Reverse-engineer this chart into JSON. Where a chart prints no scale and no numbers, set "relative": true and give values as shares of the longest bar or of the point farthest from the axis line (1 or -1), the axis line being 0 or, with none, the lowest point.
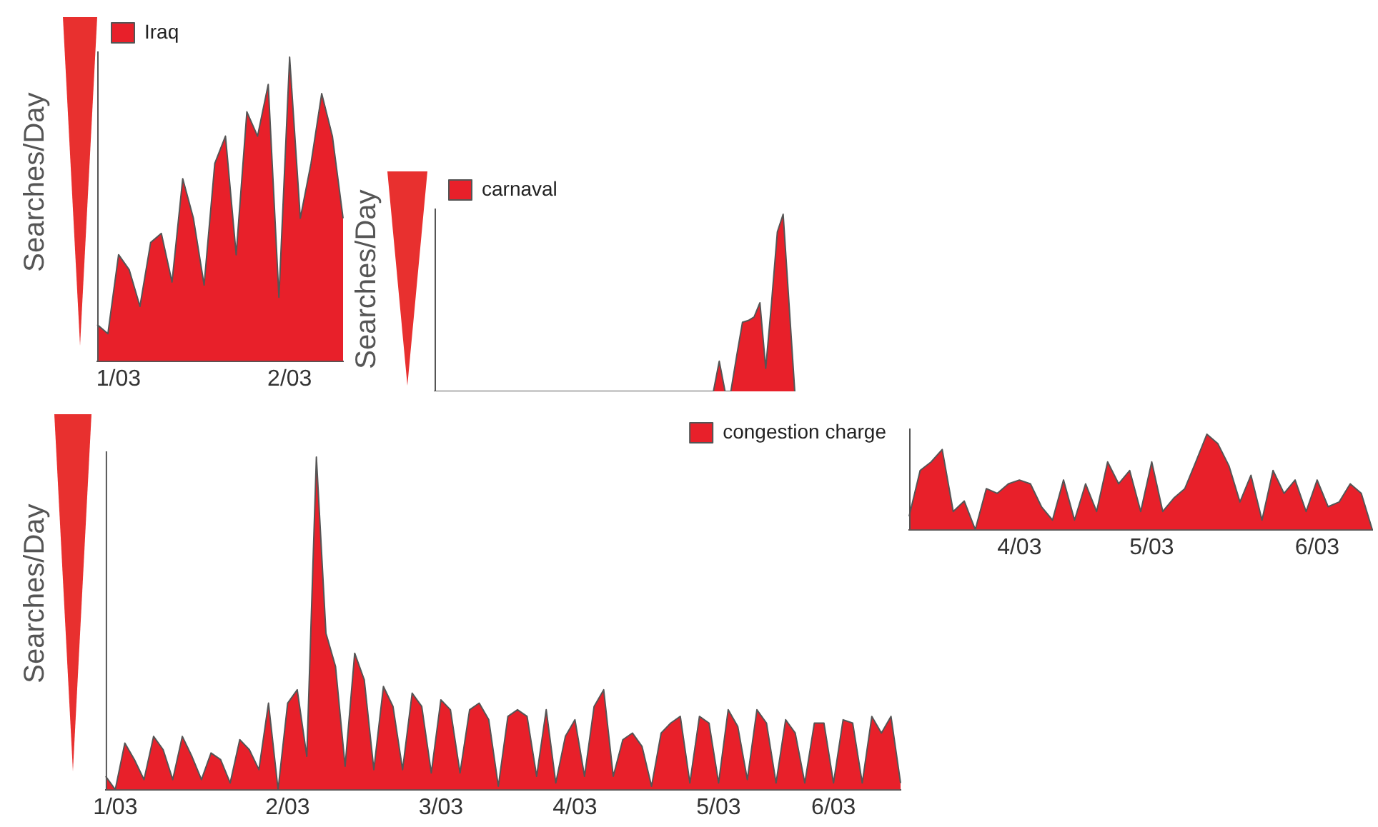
{
  "chart_data": [
    {
      "type": "area",
      "ylabel": "Searches/Day",
      "legend": "top left",
      "relative": true,
      "categories": [
        null,
        null,
        "1/03",
        null,
        null,
        null,
        null,
        null,
        null,
        null,
        null,
        null,
        null,
        null,
        null,
        null,
        null,
        null,
        "2/03",
        null,
        null,
        null,
        null,
        null
      ],
      "series": [
        {
          "name": "Iraq",
          "color": "#e8202a",
          "values": [
            0.12,
            0.09,
            0.35,
            0.3,
            0.18,
            0.39,
            0.42,
            0.26,
            0.6,
            0.47,
            0.25,
            0.65,
            0.74,
            0.35,
            0.82,
            0.74,
            0.91,
            0.21,
            1,
            0.47,
            0.65,
            0.88,
            0.74,
            0.47
          ]
        }
      ]
    },
    {
      "type": "area",
      "ylabel": "Searches/Day",
      "legend": "top left",
      "relative": true,
      "categories": [
        null,
        null,
        null,
        null,
        null,
        null,
        null,
        null,
        null,
        null,
        null,
        null,
        null,
        null,
        null,
        null,
        null,
        null,
        null,
        null,
        null,
        null,
        null,
        null,
        null,
        null,
        null,
        null,
        null,
        null,
        null,
        null,
        null,
        null,
        null,
        null,
        null,
        null,
        null,
        null,
        null,
        null,
        null,
        null,
        null,
        null,
        null,
        null,
        null,
        null,
        null,
        null,
        null,
        null,
        null,
        null,
        null,
        null,
        null,
        null,
        null,
        null,
        null
      ],
      "series": [
        {
          "name": "carnaval",
          "color": "#e8202a",
          "values": [
            0,
            0,
            0,
            0,
            0,
            0,
            0,
            0,
            0,
            0,
            0,
            0,
            0,
            0,
            0,
            0,
            0,
            0,
            0,
            0,
            0,
            0,
            0,
            0,
            0,
            0,
            0,
            0,
            0,
            0,
            0,
            0,
            0,
            0,
            0,
            0,
            0,
            0,
            0,
            0,
            0,
            0,
            0,
            0,
            0,
            0,
            0,
            0,
            0,
            0.17,
            0,
            0,
            0.2,
            0.39,
            0.4,
            0.42,
            0.5,
            0.13,
            0.5,
            0.9,
            1,
            0.5,
            0
          ]
        }
      ]
    },
    {
      "type": "area",
      "ylabel": "Searches/Day",
      "legend": "top right",
      "relative": true,
      "categories": [
        null,
        "1/03",
        null,
        null,
        null,
        null,
        null,
        null,
        null,
        null,
        null,
        null,
        null,
        null,
        null,
        null,
        null,
        null,
        null,
        "2/03",
        null,
        null,
        null,
        null,
        null,
        null,
        null,
        null,
        null,
        null,
        null,
        null,
        null,
        null,
        null,
        "3/03",
        null,
        null,
        null,
        null,
        null,
        null,
        null,
        null,
        null,
        null,
        null,
        null,
        null,
        "4/03",
        null,
        null,
        null,
        null,
        null,
        null,
        null,
        null,
        null,
        null,
        null,
        null,
        null,
        null,
        "5/03",
        null,
        null,
        null,
        null,
        null,
        null,
        null,
        null,
        null,
        null,
        null,
        "6/03",
        null,
        null,
        null,
        null,
        null,
        null,
        null
      ],
      "series": [
        {
          "name": "congestion charge",
          "color": "#e8202a",
          "values": [
            0.04,
            0,
            0.14,
            0.09,
            0.03,
            0.16,
            0.12,
            0.03,
            0.16,
            0.1,
            0.03,
            0.11,
            0.09,
            0.02,
            0.15,
            0.12,
            0.06,
            0.26,
            0,
            0.26,
            0.3,
            0.1,
            1,
            0.47,
            0.37,
            0.07,
            0.41,
            0.33,
            0.06,
            0.31,
            0.25,
            0.06,
            0.29,
            0.25,
            0.05,
            0.27,
            0.24,
            0.05,
            0.24,
            0.26,
            0.21,
            0.01,
            0.22,
            0.24,
            0.22,
            0.04,
            0.24,
            0.02,
            0.16,
            0.21,
            0.04,
            0.25,
            0.3,
            0.04,
            0.15,
            0.17,
            0.13,
            0.01,
            0.17,
            0.2,
            0.22,
            0.02,
            0.22,
            0.2,
            0.02,
            0.24,
            0.19,
            0.03,
            0.24,
            0.2,
            0.02,
            0.21,
            0.17,
            0.02,
            0.2,
            0.2,
            0.02,
            0.21,
            0.2,
            0.02,
            0.22,
            0.17,
            0.22,
            0.02
          ]
        }
      ]
    },
    {
      "type": "area",
      "relative": true,
      "categories": [
        null,
        null,
        null,
        null,
        null,
        null,
        null,
        null,
        null,
        null,
        "4/03",
        null,
        null,
        null,
        null,
        null,
        null,
        null,
        null,
        null,
        null,
        null,
        "5/03",
        null,
        null,
        null,
        null,
        null,
        null,
        null,
        null,
        null,
        null,
        null,
        null,
        null,
        null,
        "6/03",
        null,
        null,
        null,
        null,
        null
      ],
      "series": [
        {
          "color": "#e8202a",
          "values": [
            0.14,
            0.62,
            0.71,
            0.84,
            0.19,
            0.3,
            0,
            0.43,
            0.38,
            0.48,
            0.52,
            0.48,
            0.24,
            0.1,
            0.52,
            0.1,
            0.48,
            0.19,
            0.71,
            0.48,
            0.62,
            0.19,
            0.71,
            0.19,
            0.33,
            0.43,
            0.71,
            1,
            0.9,
            0.67,
            0.29,
            0.57,
            0.1,
            0.62,
            0.38,
            0.52,
            0.19,
            0.52,
            0.24,
            0.29,
            0.48,
            0.38,
            0
          ]
        }
      ]
    }
  ]
}
